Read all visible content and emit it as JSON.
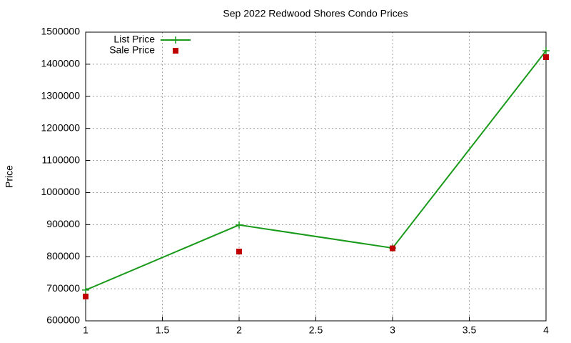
{
  "chart_data": {
    "type": "line",
    "title": "Sep 2022 Redwood Shores Condo Prices",
    "y_label": "Price",
    "x": [
      1,
      2,
      3,
      4
    ],
    "series": [
      {
        "name": "List Price",
        "color": "#1a9a1a",
        "values": [
          696000,
          899000,
          827000,
          1442000
        ],
        "line": true,
        "marker": "plus"
      },
      {
        "name": "Sale Price",
        "color": "#c00000",
        "values": [
          676000,
          816000,
          826000,
          1422000
        ],
        "line": false,
        "marker": "square"
      }
    ],
    "xlim": [
      1,
      4
    ],
    "xticks": [
      1,
      1.5,
      2,
      2.5,
      3,
      3.5,
      4
    ],
    "ylim": [
      600000,
      1500000
    ],
    "yticks": [
      600000,
      700000,
      800000,
      900000,
      1000000,
      1100000,
      1200000,
      1300000,
      1400000,
      1500000
    ],
    "grid": true,
    "legend": "top left"
  }
}
